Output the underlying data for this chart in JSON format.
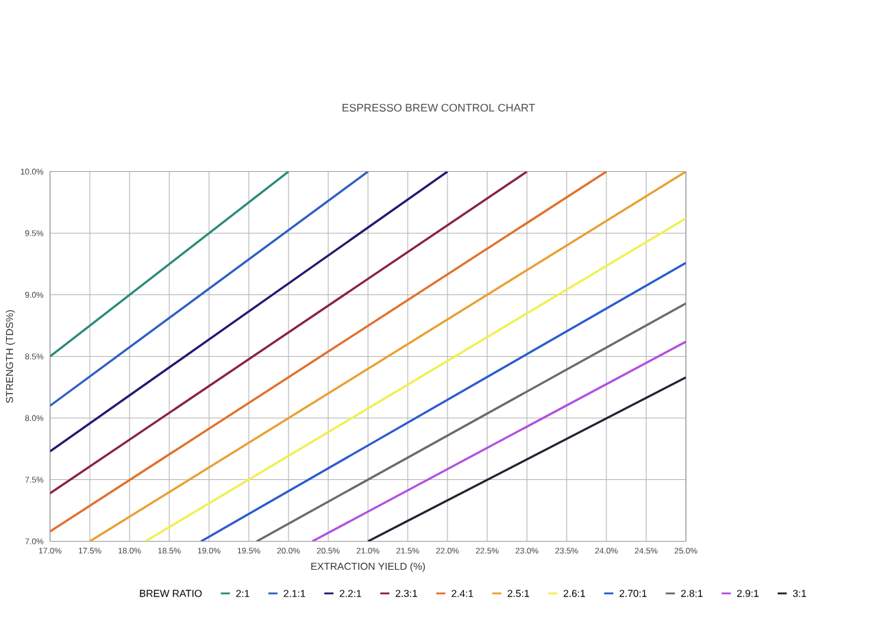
{
  "chart_data": {
    "type": "line",
    "title": "ESPRESSO BREW CONTROL CHART",
    "xlabel": "EXTRACTION YIELD (%)",
    "ylabel": "STRENGTH (TDS%)",
    "legend_title": "BREW RATIO",
    "xlim": [
      17,
      25
    ],
    "ylim": [
      7,
      10
    ],
    "xticks": [
      {
        "value": 17,
        "label": "17.0%"
      },
      {
        "value": 17.5,
        "label": "17.5%"
      },
      {
        "value": 18,
        "label": "18.0%"
      },
      {
        "value": 18.5,
        "label": "18.5%"
      },
      {
        "value": 19,
        "label": "19.0%"
      },
      {
        "value": 19.5,
        "label": "19.5%"
      },
      {
        "value": 20,
        "label": "20.0%"
      },
      {
        "value": 20.5,
        "label": "20.5%"
      },
      {
        "value": 21,
        "label": "21.0%"
      },
      {
        "value": 21.5,
        "label": "21.5%"
      },
      {
        "value": 22,
        "label": "22.0%"
      },
      {
        "value": 22.5,
        "label": "22.5%"
      },
      {
        "value": 23,
        "label": "23.0%"
      },
      {
        "value": 23.5,
        "label": "23.5%"
      },
      {
        "value": 24,
        "label": "24.0%"
      },
      {
        "value": 24.5,
        "label": "24.5%"
      },
      {
        "value": 25,
        "label": "25.0%"
      }
    ],
    "yticks": [
      {
        "value": 7,
        "label": "7.0%"
      },
      {
        "value": 7.5,
        "label": "7.5%"
      },
      {
        "value": 8,
        "label": "8.0%"
      },
      {
        "value": 8.5,
        "label": "8.5%"
      },
      {
        "value": 9,
        "label": "9.0%"
      },
      {
        "value": 9.5,
        "label": "9.5%"
      },
      {
        "value": 10,
        "label": "10.0%"
      }
    ],
    "grid": true,
    "legend": "bottom",
    "marker": "none",
    "line_style": "solid",
    "series": [
      {
        "name": "2:1",
        "color": "#2a8a7a",
        "x": [
          17,
          20
        ],
        "values": [
          8.5,
          10
        ]
      },
      {
        "name": "2.1:1",
        "color": "#2f5fc4",
        "x": [
          17,
          21
        ],
        "values": [
          8.1,
          10
        ]
      },
      {
        "name": "2.2:1",
        "color": "#1f1a6e",
        "x": [
          17,
          22
        ],
        "values": [
          7.73,
          10
        ]
      },
      {
        "name": "2.3:1",
        "color": "#8a2048",
        "x": [
          17,
          23
        ],
        "values": [
          7.39,
          10
        ]
      },
      {
        "name": "2.4:1",
        "color": "#e0702a",
        "x": [
          17,
          24
        ],
        "values": [
          7.08,
          10
        ]
      },
      {
        "name": "2.5:1",
        "color": "#e8a030",
        "x": [
          17.5,
          25
        ],
        "values": [
          7,
          10
        ]
      },
      {
        "name": "2.6:1",
        "color": "#f0f050",
        "x": [
          18.2,
          25
        ],
        "values": [
          7,
          9.62
        ]
      },
      {
        "name": "2.70:1",
        "color": "#2a5ad0",
        "x": [
          18.9,
          25
        ],
        "values": [
          7,
          9.26
        ]
      },
      {
        "name": "2.8:1",
        "color": "#6a6a6a",
        "x": [
          19.6,
          25
        ],
        "values": [
          7,
          8.93
        ]
      },
      {
        "name": "2.9:1",
        "color": "#b050e0",
        "x": [
          20.3,
          25
        ],
        "values": [
          7,
          8.62
        ]
      },
      {
        "name": "3:1",
        "color": "#222233",
        "x": [
          21,
          25
        ],
        "values": [
          7,
          8.33
        ]
      }
    ]
  }
}
